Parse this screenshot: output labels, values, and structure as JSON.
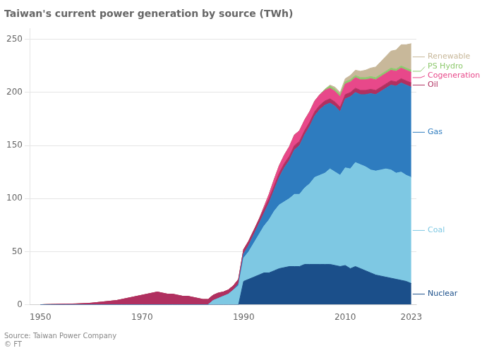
{
  "chart_data": {
    "type": "area",
    "title": "Taiwan's current power generation by source (TWh)",
    "annotations": [
      "Source: Taiwan Power Company",
      "© FT"
    ],
    "stacked": true,
    "grid": true,
    "x": [
      1950,
      1951,
      1952,
      1953,
      1954,
      1955,
      1956,
      1957,
      1958,
      1959,
      1960,
      1961,
      1962,
      1963,
      1964,
      1965,
      1966,
      1967,
      1968,
      1969,
      1970,
      1971,
      1972,
      1973,
      1974,
      1975,
      1976,
      1977,
      1978,
      1979,
      1980,
      1981,
      1982,
      1983,
      1984,
      1985,
      1986,
      1987,
      1988,
      1989,
      1990,
      1991,
      1992,
      1993,
      1994,
      1995,
      1996,
      1997,
      1998,
      1999,
      2000,
      2001,
      2002,
      2003,
      2004,
      2005,
      2006,
      2007,
      2008,
      2009,
      2010,
      2011,
      2012,
      2013,
      2014,
      2015,
      2016,
      2017,
      2018,
      2019,
      2020,
      2021,
      2022,
      2023
    ],
    "series": [
      {
        "name": "Nuclear",
        "color": "#1b4f8a",
        "values": [
          0,
          0,
          0,
          0,
          0,
          0,
          0,
          0,
          0,
          0,
          0,
          0,
          0,
          0,
          0,
          0,
          0,
          0,
          0,
          0,
          0,
          0,
          0,
          0,
          0,
          0,
          0,
          0,
          0,
          0,
          0,
          0,
          0,
          0,
          0,
          0,
          0,
          0,
          0,
          0,
          22,
          24,
          26,
          28,
          30,
          30,
          32,
          34,
          35,
          36,
          36,
          36,
          38,
          38,
          38,
          38,
          38,
          38,
          37,
          36,
          37,
          34,
          36,
          34,
          32,
          30,
          28,
          27,
          26,
          25,
          24,
          23,
          22,
          20
        ]
      },
      {
        "name": "Coal",
        "color": "#7ec8e3",
        "values": [
          0,
          0,
          0,
          0,
          0,
          0,
          0,
          0,
          0,
          0,
          0,
          0,
          0,
          0,
          0,
          0,
          0,
          0,
          0,
          0,
          0,
          0,
          0,
          0,
          0,
          0,
          0,
          0,
          0,
          0,
          0,
          0,
          0,
          0,
          4,
          6,
          8,
          10,
          14,
          18,
          22,
          26,
          32,
          38,
          44,
          50,
          56,
          60,
          62,
          64,
          68,
          68,
          72,
          76,
          82,
          84,
          86,
          90,
          88,
          86,
          92,
          94,
          98,
          98,
          98,
          97,
          98,
          100,
          102,
          102,
          100,
          102,
          100,
          100
        ]
      },
      {
        "name": "Gas",
        "color": "#2e7cbf",
        "values": [
          0,
          0,
          0,
          0,
          0,
          0,
          0,
          0,
          0,
          0,
          0,
          0,
          0,
          0,
          0,
          0,
          0,
          0,
          0,
          0,
          0,
          0,
          0,
          0,
          0,
          0,
          0,
          0,
          0,
          0,
          0,
          0,
          0,
          0,
          0,
          0,
          0,
          0,
          0,
          2,
          4,
          6,
          8,
          10,
          12,
          16,
          20,
          26,
          32,
          36,
          42,
          46,
          50,
          54,
          58,
          62,
          64,
          62,
          62,
          60,
          65,
          68,
          66,
          66,
          68,
          72,
          72,
          74,
          76,
          80,
          82,
          84,
          85,
          85
        ]
      },
      {
        "name": "Oil",
        "color": "#b03060",
        "values": [
          0,
          0.2,
          0.3,
          0.4,
          0.5,
          0.6,
          0.7,
          0.8,
          1,
          1.2,
          1.5,
          2,
          2.5,
          3,
          3.5,
          4,
          5,
          6,
          7,
          8,
          9,
          10,
          11,
          12,
          11,
          10,
          10,
          9,
          8,
          8,
          7,
          6,
          5,
          5,
          5,
          5,
          4,
          4,
          4,
          4,
          4,
          4,
          4,
          4,
          4,
          4,
          4,
          4,
          4,
          4,
          4,
          4,
          4,
          4,
          4,
          4,
          4,
          4,
          4,
          4,
          4,
          4,
          4,
          4,
          4,
          4,
          4,
          4,
          4,
          4,
          4,
          4,
          4,
          4
        ]
      },
      {
        "name": "Cogeneration",
        "color": "#e8488a",
        "values": [
          0,
          0,
          0,
          0,
          0,
          0,
          0,
          0,
          0,
          0,
          0,
          0,
          0,
          0,
          0,
          0,
          0,
          0,
          0,
          0,
          0,
          0,
          0,
          0,
          0,
          0,
          0,
          0,
          0,
          0,
          0,
          0,
          0,
          0,
          0,
          0,
          0,
          0,
          0,
          0,
          0,
          0,
          0,
          0,
          2,
          4,
          6,
          7,
          8,
          9,
          10,
          10,
          10,
          10,
          10,
          10,
          10,
          10,
          10,
          10,
          10,
          10,
          10,
          10,
          10,
          10,
          10,
          10,
          10,
          10,
          10,
          10,
          10,
          10
        ]
      },
      {
        "name": "PS Hydro",
        "color": "#8ec96e",
        "values": [
          0,
          0,
          0,
          0,
          0,
          0,
          0,
          0,
          0,
          0,
          0,
          0,
          0,
          0,
          0,
          0,
          0,
          0,
          0,
          0,
          0,
          0,
          0,
          0,
          0,
          0,
          0,
          0,
          0,
          0,
          0,
          0,
          0,
          0,
          0,
          0,
          0,
          0,
          0,
          0,
          0,
          0,
          0,
          0,
          0,
          0,
          0,
          0,
          0,
          0,
          0,
          0,
          0,
          0,
          0,
          0,
          1,
          2,
          2,
          2,
          2,
          2,
          2,
          2,
          2,
          2,
          2,
          2,
          2,
          2,
          2,
          2,
          2,
          2
        ]
      },
      {
        "name": "Renewable",
        "color": "#c8b89a",
        "values": [
          0,
          0,
          0,
          0,
          0,
          0,
          0,
          0,
          0,
          0,
          0,
          0,
          0,
          0,
          0,
          0,
          0,
          0,
          0,
          0,
          0,
          0,
          0,
          0,
          0,
          0,
          0,
          0,
          0,
          0,
          0,
          0,
          0,
          0,
          0,
          0,
          0,
          0,
          0,
          0,
          0,
          0,
          0,
          0,
          0,
          0,
          0,
          0,
          0,
          0,
          0,
          0,
          0,
          0,
          0,
          0,
          0,
          1,
          2,
          2,
          3,
          4,
          5,
          6,
          7,
          8,
          10,
          12,
          14,
          16,
          18,
          20,
          22,
          25
        ]
      }
    ],
    "xlim": [
      1948,
      2024
    ],
    "xticks": [
      1950,
      1970,
      1990,
      2010,
      2023
    ],
    "ylim": [
      0,
      260
    ],
    "yticks": [
      0,
      50,
      100,
      150,
      200,
      250
    ]
  }
}
